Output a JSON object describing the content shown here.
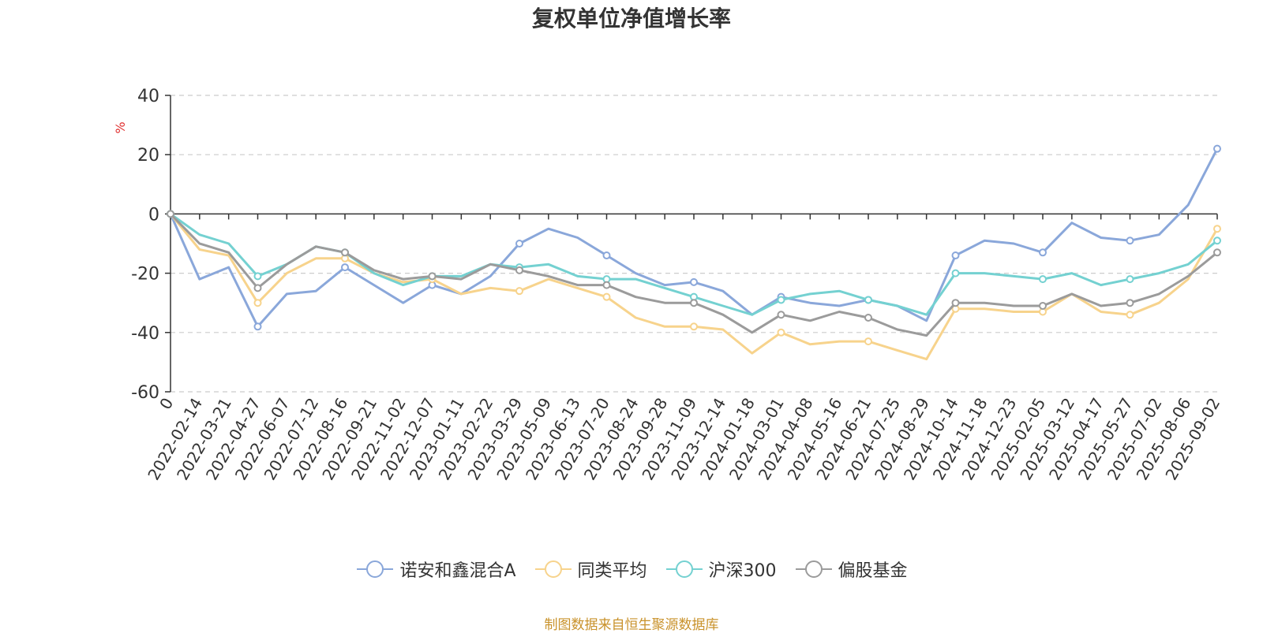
{
  "chart_data": {
    "type": "line",
    "title": "复权单位净值增长率",
    "ylabel": "%",
    "ylim": [
      -60,
      40
    ],
    "yticks": [
      40,
      20,
      0,
      -20,
      -40,
      -60
    ],
    "grid": true,
    "legend_position": "bottom",
    "x": [
      "0",
      "2022-02-14",
      "2022-03-21",
      "2022-04-27",
      "2022-06-07",
      "2022-07-12",
      "2022-08-16",
      "2022-09-21",
      "2022-11-02",
      "2022-12-07",
      "2023-01-11",
      "2023-02-22",
      "2023-03-29",
      "2023-05-09",
      "2023-06-13",
      "2023-07-20",
      "2023-08-24",
      "2023-09-28",
      "2023-11-09",
      "2023-12-14",
      "2024-01-18",
      "2024-03-01",
      "2024-04-08",
      "2024-05-16",
      "2024-06-21",
      "2024-07-25",
      "2024-08-29",
      "2024-10-14",
      "2024-11-18",
      "2024-12-23",
      "2025-02-05",
      "2025-03-12",
      "2025-04-17",
      "2025-05-27",
      "2025-07-02",
      "2025-08-06",
      "2025-09-02"
    ],
    "series": [
      {
        "name": "诺安和鑫混合A",
        "color": "#8aa7da",
        "values": [
          0,
          -22,
          -18,
          -38,
          -27,
          -26,
          -18,
          -24,
          -30,
          -24,
          -27,
          -21,
          -10,
          -5,
          -8,
          -14,
          -20,
          -24,
          -23,
          -26,
          -34,
          -28,
          -30,
          -31,
          -29,
          -31,
          -36,
          -14,
          -9,
          -10,
          -13,
          -3,
          -8,
          -9,
          -7,
          3,
          22
        ]
      },
      {
        "name": "同类平均",
        "color": "#f7d38c",
        "values": [
          0,
          -12,
          -14,
          -30,
          -20,
          -15,
          -15,
          -20,
          -23,
          -22,
          -27,
          -25,
          -26,
          -22,
          -25,
          -28,
          -35,
          -38,
          -38,
          -39,
          -47,
          -40,
          -44,
          -43,
          -43,
          -46,
          -49,
          -32,
          -32,
          -33,
          -33,
          -27,
          -33,
          -34,
          -30,
          -22,
          -5
        ]
      },
      {
        "name": "沪深300",
        "color": "#74d1d1",
        "values": [
          0,
          -7,
          -10,
          -21,
          -17,
          -11,
          -13,
          -20,
          -24,
          -21,
          -21,
          -17,
          -18,
          -17,
          -21,
          -22,
          -22,
          -25,
          -28,
          -31,
          -34,
          -29,
          -27,
          -26,
          -29,
          -31,
          -34,
          -20,
          -20,
          -21,
          -22,
          -20,
          -24,
          -22,
          -20,
          -17,
          -9
        ]
      },
      {
        "name": "偏股基金",
        "color": "#9b9b9b",
        "values": [
          0,
          -10,
          -13,
          -25,
          -17,
          -11,
          -13,
          -19,
          -22,
          -21,
          -22,
          -17,
          -19,
          -21,
          -24,
          -24,
          -28,
          -30,
          -30,
          -34,
          -40,
          -34,
          -36,
          -33,
          -35,
          -39,
          -41,
          -30,
          -30,
          -31,
          -31,
          -27,
          -31,
          -30,
          -27,
          -21,
          -13
        ]
      }
    ]
  },
  "source_text": "制图数据来自恒生聚源数据库"
}
